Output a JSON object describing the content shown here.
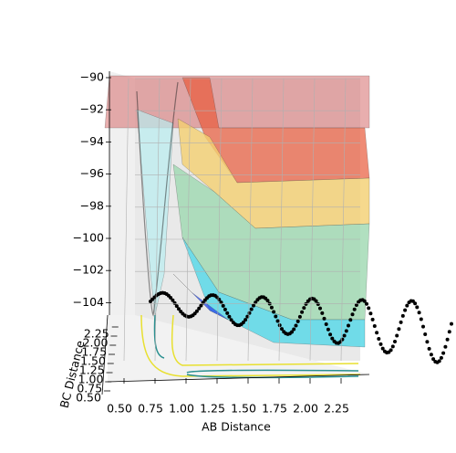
{
  "chart_data": {
    "type": "surface",
    "xlabel": "AB Distance",
    "ylabel": "BC Distance",
    "xticks": [
      {
        "value": 0.5,
        "label": "0.50"
      },
      0.75,
      {
        "value": 1.0,
        "label": "1.00"
      },
      1.25,
      {
        "value": 1.5,
        "label": "1.50"
      },
      1.75,
      {
        "value": 2.0,
        "label": "2.00"
      },
      2.25
    ],
    "yticks": [
      {
        "value": 0.5,
        "label": "0.50"
      },
      0.75,
      {
        "value": 1.0,
        "label": "1.00"
      },
      1.25,
      {
        "value": 1.5,
        "label": "1.50"
      },
      1.75,
      {
        "value": 2.0,
        "label": "2.00"
      },
      2.25
    ],
    "zticks": [
      {
        "value": -90,
        "label": "−90"
      },
      {
        "value": -92,
        "label": "−92"
      },
      {
        "value": -94,
        "label": "−94"
      },
      {
        "value": -96,
        "label": "−96"
      },
      {
        "value": -98,
        "label": "−98"
      },
      {
        "value": -100,
        "label": "−100"
      },
      {
        "value": -102,
        "label": "−102"
      },
      {
        "value": -104,
        "label": "−104"
      }
    ]
  }
}
